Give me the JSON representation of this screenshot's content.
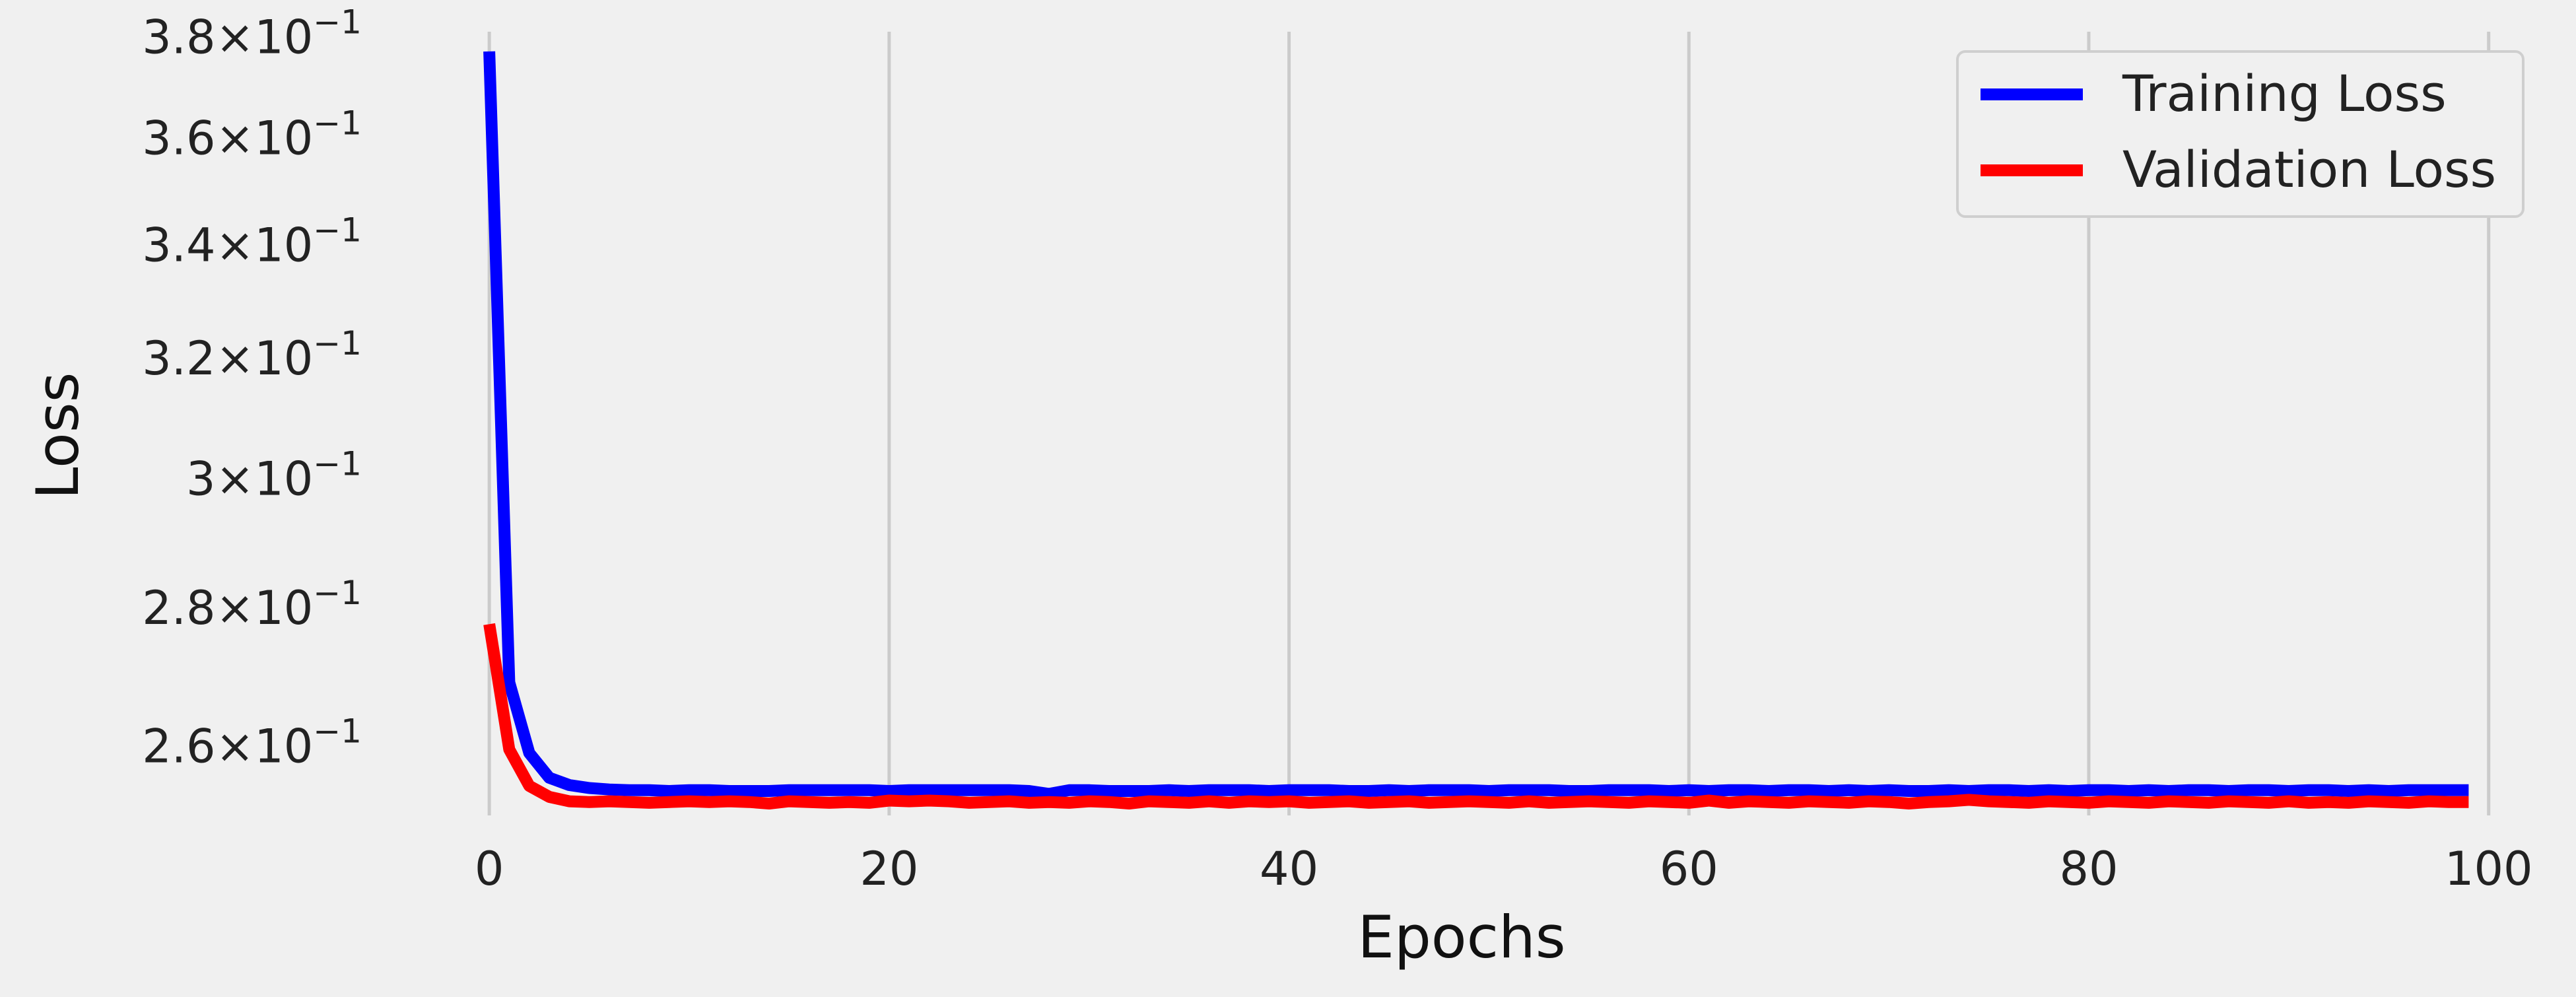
{
  "chart_data": {
    "type": "line",
    "xlabel": "Epochs",
    "ylabel": "Loss",
    "xlim": [
      -4,
      101
    ],
    "ylim": [
      0.2505,
      0.381
    ],
    "yscale": "log",
    "x_ticks": [
      0,
      20,
      40,
      60,
      80,
      100
    ],
    "x_tick_labels": [
      "0",
      "20",
      "40",
      "60",
      "80",
      "100"
    ],
    "y_ticks": [
      0.26,
      0.28,
      0.3,
      0.32,
      0.34,
      0.36,
      0.38
    ],
    "y_tick_labels": [
      {
        "mantissa": "2.6",
        "exp": "−1"
      },
      {
        "mantissa": "2.8",
        "exp": "−1"
      },
      {
        "mantissa": "3",
        "exp": "−1"
      },
      {
        "mantissa": "3.2",
        "exp": "−1"
      },
      {
        "mantissa": "3.4",
        "exp": "−1"
      },
      {
        "mantissa": "3.6",
        "exp": "−1"
      },
      {
        "mantissa": "3.8",
        "exp": "−1"
      }
    ],
    "grid": "x-major",
    "legend_position": "top-right",
    "series": [
      {
        "name": "Training Loss",
        "color": "#0000ff",
        "x": [
          0,
          1,
          2,
          3,
          4,
          5,
          6,
          7,
          8,
          9,
          10,
          11,
          12,
          13,
          14,
          15,
          16,
          17,
          18,
          19,
          20,
          21,
          22,
          23,
          24,
          25,
          26,
          27,
          28,
          29,
          30,
          31,
          32,
          33,
          34,
          35,
          36,
          37,
          38,
          39,
          40,
          41,
          42,
          43,
          44,
          45,
          46,
          47,
          48,
          49,
          50,
          51,
          52,
          53,
          54,
          55,
          56,
          57,
          58,
          59,
          60,
          61,
          62,
          63,
          64,
          65,
          66,
          67,
          68,
          69,
          70,
          71,
          72,
          73,
          74,
          75,
          76,
          77,
          78,
          79,
          80,
          81,
          82,
          83,
          84,
          85,
          86,
          87,
          88,
          89,
          90,
          91,
          92,
          93,
          94,
          95,
          96,
          97,
          98,
          99
        ],
        "y": [
          0.377,
          0.269,
          0.259,
          0.2556,
          0.2546,
          0.2542,
          0.254,
          0.2539,
          0.2539,
          0.2538,
          0.2539,
          0.2539,
          0.2538,
          0.2538,
          0.2538,
          0.2539,
          0.2539,
          0.2539,
          0.2539,
          0.2539,
          0.2538,
          0.2539,
          0.2539,
          0.2539,
          0.2539,
          0.2539,
          0.2539,
          0.2538,
          0.2534,
          0.2539,
          0.2539,
          0.2538,
          0.2538,
          0.2538,
          0.2539,
          0.2538,
          0.2539,
          0.2539,
          0.2539,
          0.2538,
          0.2539,
          0.2539,
          0.2539,
          0.2538,
          0.2538,
          0.2539,
          0.2538,
          0.2539,
          0.2539,
          0.2539,
          0.2538,
          0.2539,
          0.2539,
          0.2539,
          0.2538,
          0.2538,
          0.2539,
          0.2539,
          0.2539,
          0.2538,
          0.2539,
          0.2538,
          0.2539,
          0.2539,
          0.2538,
          0.2539,
          0.2539,
          0.2538,
          0.2539,
          0.2538,
          0.2539,
          0.2538,
          0.2538,
          0.2539,
          0.2538,
          0.2539,
          0.2539,
          0.2538,
          0.2539,
          0.2538,
          0.2539,
          0.2539,
          0.2538,
          0.2539,
          0.2538,
          0.2539,
          0.2539,
          0.2538,
          0.2539,
          0.2539,
          0.2538,
          0.2539,
          0.2539,
          0.2538,
          0.2539,
          0.2538,
          0.2539,
          0.2539,
          0.2539,
          0.2539
        ]
      },
      {
        "name": "Validation Loss",
        "color": "#ff0000",
        "x": [
          0,
          1,
          2,
          3,
          4,
          5,
          6,
          7,
          8,
          9,
          10,
          11,
          12,
          13,
          14,
          15,
          16,
          17,
          18,
          19,
          20,
          21,
          22,
          23,
          24,
          25,
          26,
          27,
          28,
          29,
          30,
          31,
          32,
          33,
          34,
          35,
          36,
          37,
          38,
          39,
          40,
          41,
          42,
          43,
          44,
          45,
          46,
          47,
          48,
          49,
          50,
          51,
          52,
          53,
          54,
          55,
          56,
          57,
          58,
          59,
          60,
          61,
          62,
          63,
          64,
          65,
          66,
          67,
          68,
          69,
          70,
          71,
          72,
          73,
          74,
          75,
          76,
          77,
          78,
          79,
          80,
          81,
          82,
          83,
          84,
          85,
          86,
          87,
          88,
          89,
          90,
          91,
          92,
          93,
          94,
          95,
          96,
          97,
          98,
          99
        ],
        "y": [
          0.2775,
          0.2595,
          0.2545,
          0.253,
          0.2524,
          0.2523,
          0.2524,
          0.2523,
          0.2522,
          0.2523,
          0.2524,
          0.2523,
          0.2524,
          0.2523,
          0.2521,
          0.2524,
          0.2523,
          0.2522,
          0.2523,
          0.2522,
          0.2525,
          0.2524,
          0.2525,
          0.2524,
          0.2522,
          0.2523,
          0.2524,
          0.2522,
          0.2523,
          0.2522,
          0.2524,
          0.2523,
          0.2521,
          0.2524,
          0.2523,
          0.2522,
          0.2524,
          0.2522,
          0.2524,
          0.2523,
          0.2524,
          0.2522,
          0.2523,
          0.2524,
          0.2522,
          0.2523,
          0.2524,
          0.2522,
          0.2523,
          0.2524,
          0.2523,
          0.2522,
          0.2524,
          0.2522,
          0.2523,
          0.2524,
          0.2523,
          0.2522,
          0.2524,
          0.2523,
          0.2522,
          0.2525,
          0.2522,
          0.2524,
          0.2523,
          0.2522,
          0.2524,
          0.2523,
          0.2522,
          0.2524,
          0.2523,
          0.2521,
          0.2523,
          0.2524,
          0.2526,
          0.2524,
          0.2523,
          0.2522,
          0.2524,
          0.2523,
          0.2522,
          0.2524,
          0.2523,
          0.2522,
          0.2524,
          0.2523,
          0.2522,
          0.2524,
          0.2523,
          0.2522,
          0.2524,
          0.2522,
          0.2523,
          0.2522,
          0.2524,
          0.2523,
          0.2522,
          0.2524,
          0.2523,
          0.2523
        ]
      }
    ]
  }
}
